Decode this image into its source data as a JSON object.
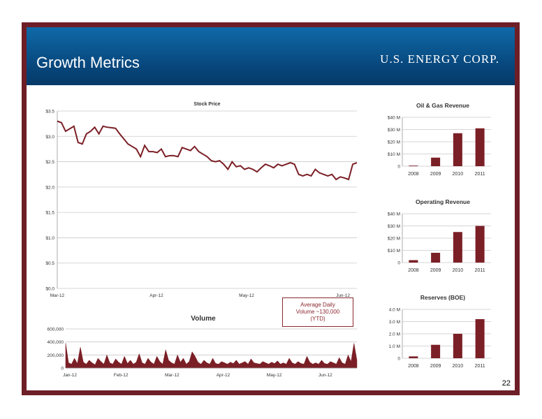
{
  "header": {
    "title": "Growth Metrics",
    "logo_text": "U.S. ENERGY CORP."
  },
  "page_number": "22",
  "volume_callout": {
    "lines": [
      "Average Daily",
      "Volume ~130,000",
      "(YTD)"
    ]
  },
  "colors": {
    "series": "#7b1f26",
    "frame": "#6e1e26",
    "header": "#07457a"
  },
  "chart_data": [
    {
      "type": "line",
      "title": "Stock Price",
      "x_tick_labels": [
        "Mar-12",
        "Apr-12",
        "May-12",
        "Jun-12"
      ],
      "y_tick_labels": [
        "$0.0",
        "$0.5",
        "$1.0",
        "$1.5",
        "$2.0",
        "$2.5",
        "$3.0",
        "$3.5"
      ],
      "ylim": [
        0,
        3.5
      ],
      "grid": true,
      "values": [
        3.3,
        3.27,
        3.1,
        3.15,
        3.2,
        2.88,
        2.85,
        3.05,
        3.1,
        3.18,
        3.05,
        3.2,
        3.18,
        3.17,
        3.16,
        3.05,
        2.95,
        2.85,
        2.8,
        2.75,
        2.6,
        2.82,
        2.7,
        2.7,
        2.68,
        2.75,
        2.6,
        2.62,
        2.62,
        2.6,
        2.78,
        2.75,
        2.72,
        2.8,
        2.7,
        2.65,
        2.6,
        2.52,
        2.5,
        2.52,
        2.45,
        2.35,
        2.5,
        2.4,
        2.42,
        2.35,
        2.38,
        2.35,
        2.3,
        2.38,
        2.45,
        2.42,
        2.38,
        2.45,
        2.42,
        2.45,
        2.48,
        2.45,
        2.25,
        2.22,
        2.25,
        2.22,
        2.35,
        2.28,
        2.25,
        2.22,
        2.25,
        2.15,
        2.2,
        2.18,
        2.15,
        2.45,
        2.48
      ]
    },
    {
      "type": "area",
      "title": "Volume",
      "x_tick_labels": [
        "Jan-12",
        "Feb-12",
        "Mar-12",
        "Apr-12",
        "May-12",
        "Jun-12"
      ],
      "y_tick_labels": [
        "0",
        "200,000",
        "400,000",
        "600,000"
      ],
      "ylim": [
        0,
        600000
      ],
      "grid": true,
      "values": [
        380000,
        80000,
        60000,
        150000,
        70000,
        320000,
        90000,
        60000,
        120000,
        80000,
        50000,
        150000,
        100000,
        60000,
        200000,
        80000,
        60000,
        140000,
        90000,
        60000,
        180000,
        70000,
        120000,
        60000,
        90000,
        220000,
        80000,
        60000,
        150000,
        90000,
        60000,
        180000,
        100000,
        60000,
        280000,
        120000,
        80000,
        60000,
        200000,
        90000,
        150000,
        60000,
        100000,
        250000,
        180000,
        90000,
        60000,
        120000,
        80000,
        60000,
        150000,
        70000,
        60000,
        100000,
        80000,
        60000,
        90000,
        70000,
        120000,
        60000,
        80000,
        100000,
        60000,
        140000,
        80000,
        70000,
        60000,
        100000,
        80000,
        60000,
        90000,
        70000,
        110000,
        60000,
        80000,
        60000,
        150000,
        80000,
        60000,
        100000,
        70000,
        60000,
        180000,
        90000,
        60000,
        80000,
        60000,
        120000,
        70000,
        60000,
        100000,
        80000,
        60000,
        160000,
        80000,
        60000,
        200000,
        100000,
        380000,
        120000
      ]
    },
    {
      "type": "bar",
      "title": "Oil & Gas Revenue",
      "categories": [
        "2008",
        "2009",
        "2010",
        "2011"
      ],
      "values": [
        0.5,
        7,
        27,
        31
      ],
      "ylim": [
        0,
        40
      ],
      "y_tick_labels": [
        "0",
        "$10 M",
        "$20 M",
        "$30 M",
        "$40 M"
      ]
    },
    {
      "type": "bar",
      "title": "Operating Revenue",
      "categories": [
        "2008",
        "2009",
        "2010",
        "2011"
      ],
      "values": [
        2,
        8,
        25,
        30
      ],
      "ylim": [
        0,
        40
      ],
      "y_tick_labels": [
        "0",
        "$10 M",
        "$20 M",
        "$30 M",
        "$40 M"
      ]
    },
    {
      "type": "bar",
      "title": "Reserves (BOE)",
      "categories": [
        "2008",
        "2009",
        "2010",
        "2011"
      ],
      "values": [
        0.15,
        1.1,
        2.0,
        3.2
      ],
      "ylim": [
        0,
        4
      ],
      "y_tick_labels": [
        "0",
        "1.0 M",
        "2.0 M",
        "3.0 M",
        "4.0 M"
      ]
    }
  ]
}
